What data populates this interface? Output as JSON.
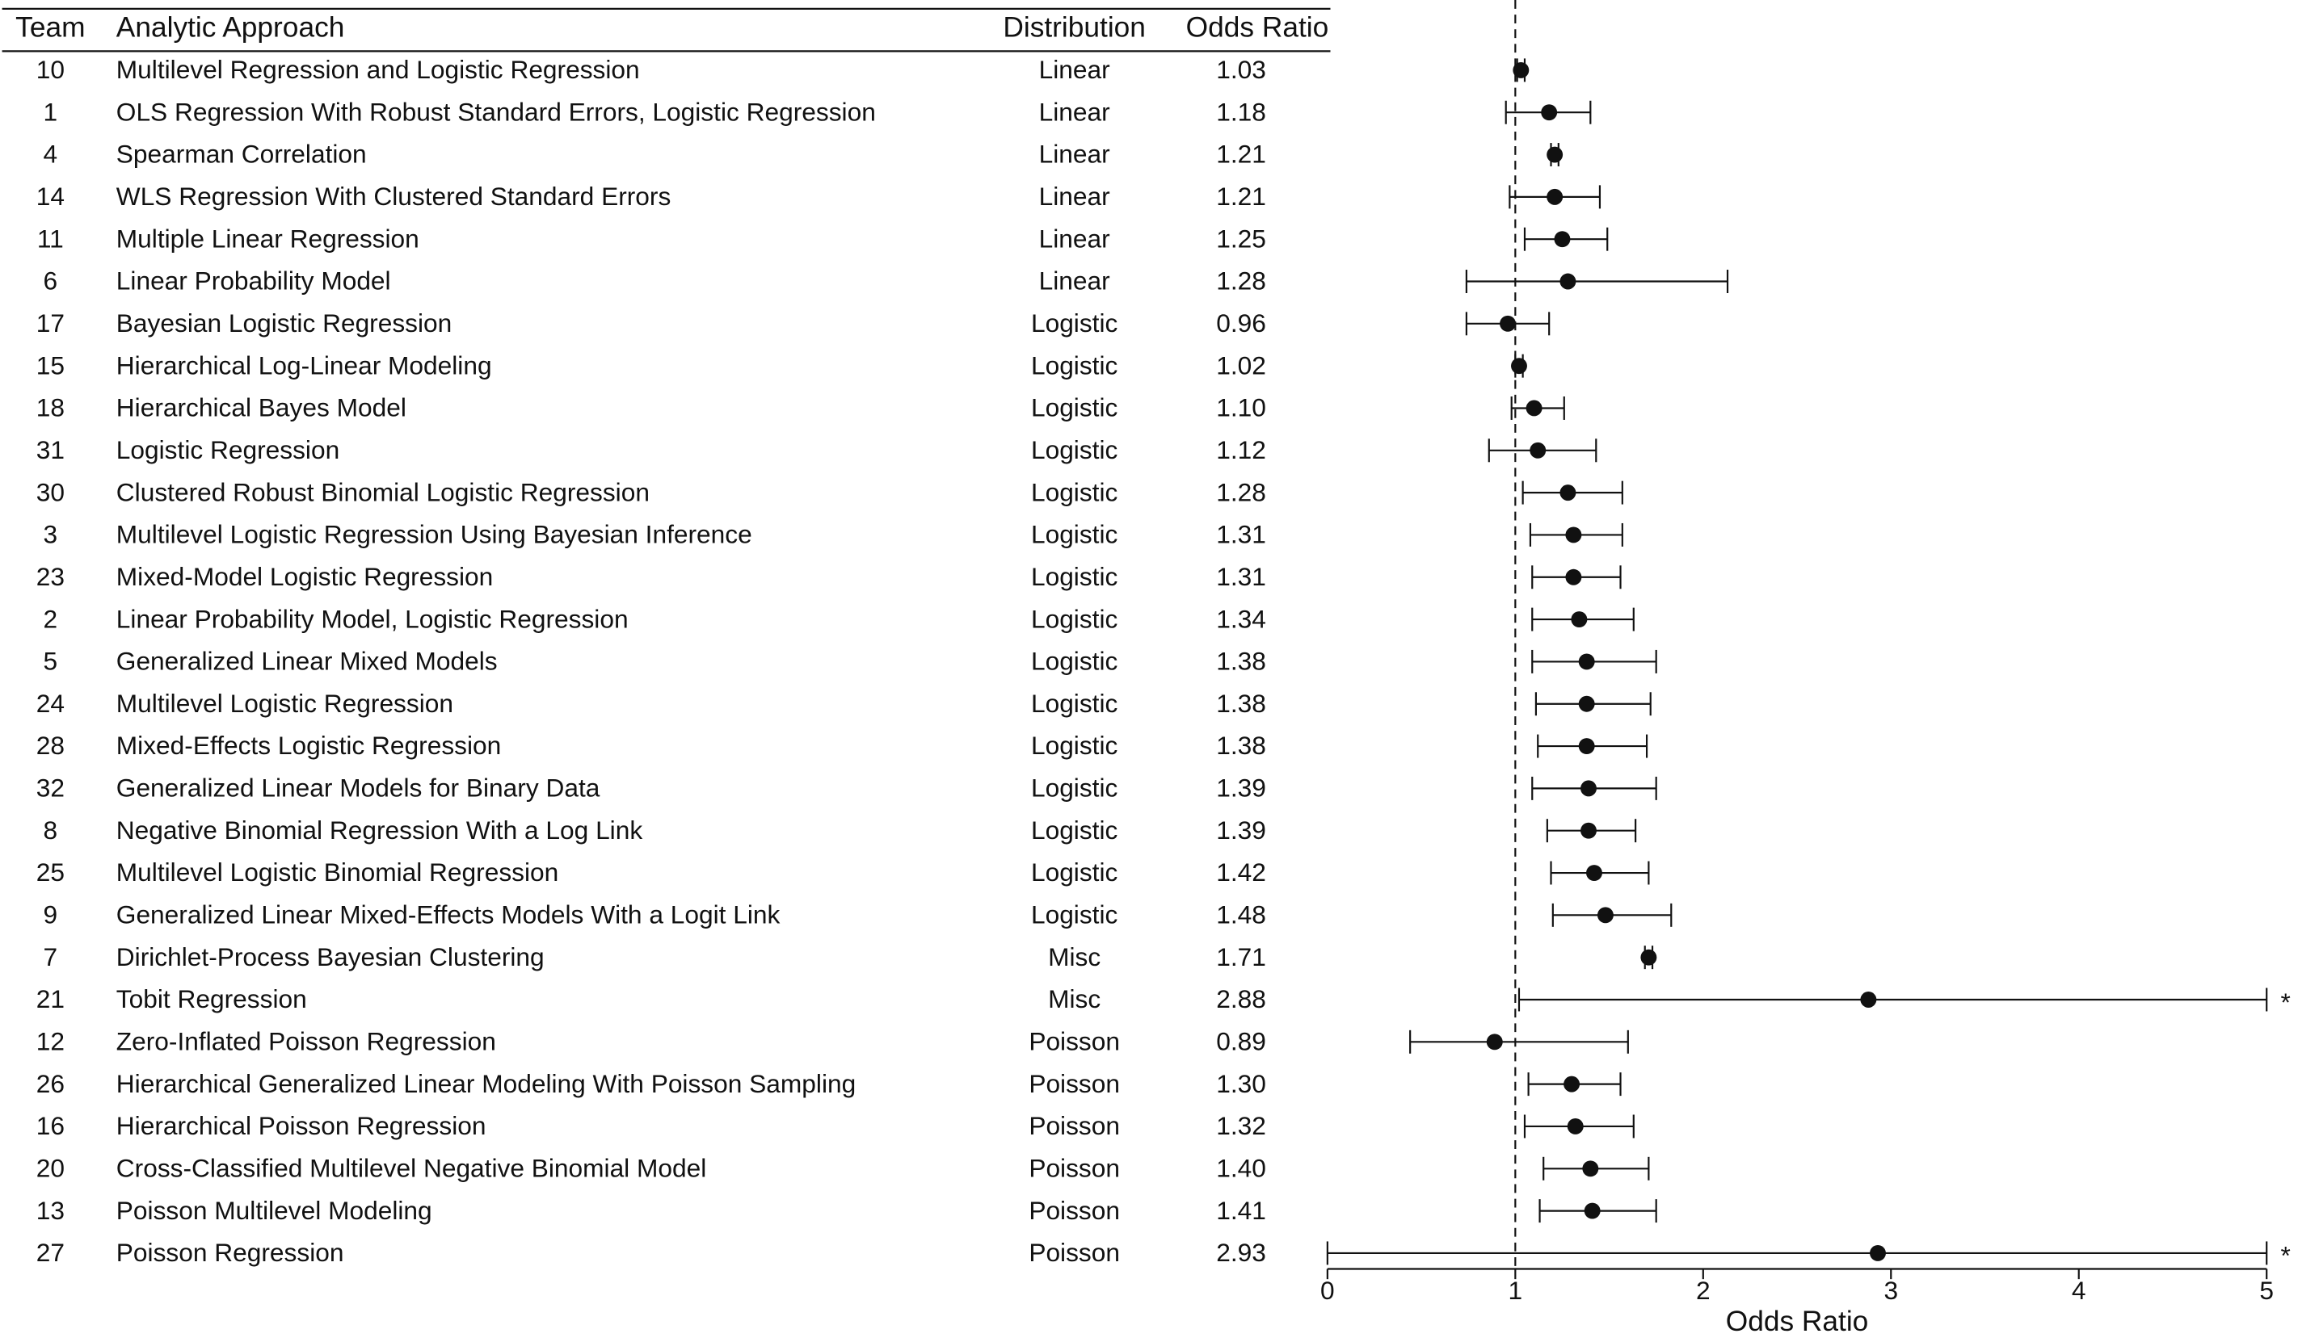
{
  "chart_data": {
    "type": "forest",
    "headers": {
      "team": "Team",
      "approach": "Analytic Approach",
      "distribution": "Distribution",
      "odds_ratio": "Odds Ratio"
    },
    "teams": [
      "10",
      "1",
      "4",
      "14",
      "11",
      "6",
      "17",
      "15",
      "18",
      "31",
      "30",
      "3",
      "23",
      "2",
      "5",
      "24",
      "28",
      "32",
      "8",
      "25",
      "9",
      "7",
      "21",
      "12",
      "26",
      "16",
      "20",
      "13",
      "27"
    ],
    "approaches": [
      "Multilevel Regression and Logistic Regression",
      "OLS Regression With Robust Standard Errors, Logistic Regression",
      "Spearman Correlation",
      "WLS Regression With Clustered Standard Errors",
      "Multiple Linear Regression",
      "Linear Probability Model",
      "Bayesian Logistic Regression",
      "Hierarchical Log-Linear Modeling",
      "Hierarchical Bayes Model",
      "Logistic Regression",
      "Clustered Robust Binomial Logistic Regression",
      "Multilevel Logistic Regression Using Bayesian Inference",
      "Mixed-Model Logistic Regression",
      "Linear Probability Model, Logistic Regression",
      "Generalized Linear Mixed Models",
      "Multilevel Logistic Regression",
      "Mixed-Effects Logistic Regression",
      "Generalized Linear Models for Binary Data",
      "Negative Binomial Regression With a Log Link",
      "Multilevel Logistic Binomial Regression",
      "Generalized Linear Mixed-Effects Models With a Logit Link",
      "Dirichlet-Process Bayesian Clustering",
      "Tobit Regression",
      "Zero-Inflated Poisson Regression",
      "Hierarchical Generalized Linear Modeling With Poisson Sampling",
      "Hierarchical Poisson Regression",
      "Cross-Classified Multilevel Negative Binomial Model",
      "Poisson Multilevel Modeling",
      "Poisson Regression"
    ],
    "distributions": [
      "Linear",
      "Linear",
      "Linear",
      "Linear",
      "Linear",
      "Linear",
      "Logistic",
      "Logistic",
      "Logistic",
      "Logistic",
      "Logistic",
      "Logistic",
      "Logistic",
      "Logistic",
      "Logistic",
      "Logistic",
      "Logistic",
      "Logistic",
      "Logistic",
      "Logistic",
      "Logistic",
      "Misc",
      "Misc",
      "Poisson",
      "Poisson",
      "Poisson",
      "Poisson",
      "Poisson",
      "Poisson"
    ],
    "values": [
      1.03,
      1.18,
      1.21,
      1.21,
      1.25,
      1.28,
      0.96,
      1.02,
      1.1,
      1.12,
      1.28,
      1.31,
      1.31,
      1.34,
      1.38,
      1.38,
      1.38,
      1.39,
      1.39,
      1.42,
      1.48,
      1.71,
      2.88,
      0.89,
      1.3,
      1.32,
      1.4,
      1.41,
      2.93
    ],
    "value_labels": [
      "1.03",
      "1.18",
      "1.21",
      "1.21",
      "1.25",
      "1.28",
      "0.96",
      "1.02",
      "1.10",
      "1.12",
      "1.28",
      "1.31",
      "1.31",
      "1.34",
      "1.38",
      "1.38",
      "1.38",
      "1.39",
      "1.39",
      "1.42",
      "1.48",
      "1.71",
      "2.88",
      "0.89",
      "1.30",
      "1.32",
      "1.40",
      "1.41",
      "2.93"
    ],
    "lower": [
      1.01,
      0.95,
      1.19,
      0.97,
      1.05,
      0.74,
      0.74,
      1.0,
      0.98,
      0.86,
      1.04,
      1.08,
      1.09,
      1.09,
      1.09,
      1.11,
      1.12,
      1.09,
      1.17,
      1.19,
      1.2,
      1.69,
      1.02,
      0.44,
      1.07,
      1.05,
      1.15,
      1.13,
      0.0
    ],
    "upper": [
      1.05,
      1.4,
      1.23,
      1.45,
      1.49,
      2.13,
      1.18,
      1.04,
      1.26,
      1.43,
      1.57,
      1.57,
      1.56,
      1.63,
      1.75,
      1.72,
      1.7,
      1.75,
      1.64,
      1.71,
      1.83,
      1.73,
      5.0,
      1.6,
      1.56,
      1.63,
      1.71,
      1.75,
      5.0
    ],
    "notes": [
      null,
      null,
      null,
      null,
      null,
      null,
      null,
      null,
      null,
      null,
      null,
      null,
      null,
      null,
      null,
      null,
      null,
      null,
      null,
      null,
      null,
      null,
      "*",
      null,
      null,
      null,
      null,
      null,
      "*"
    ],
    "xlim": [
      0,
      5
    ],
    "xticks": [
      0,
      1,
      2,
      3,
      4,
      5
    ],
    "xlabel": "Odds Ratio",
    "reference_line": 1,
    "color": "#111111"
  }
}
